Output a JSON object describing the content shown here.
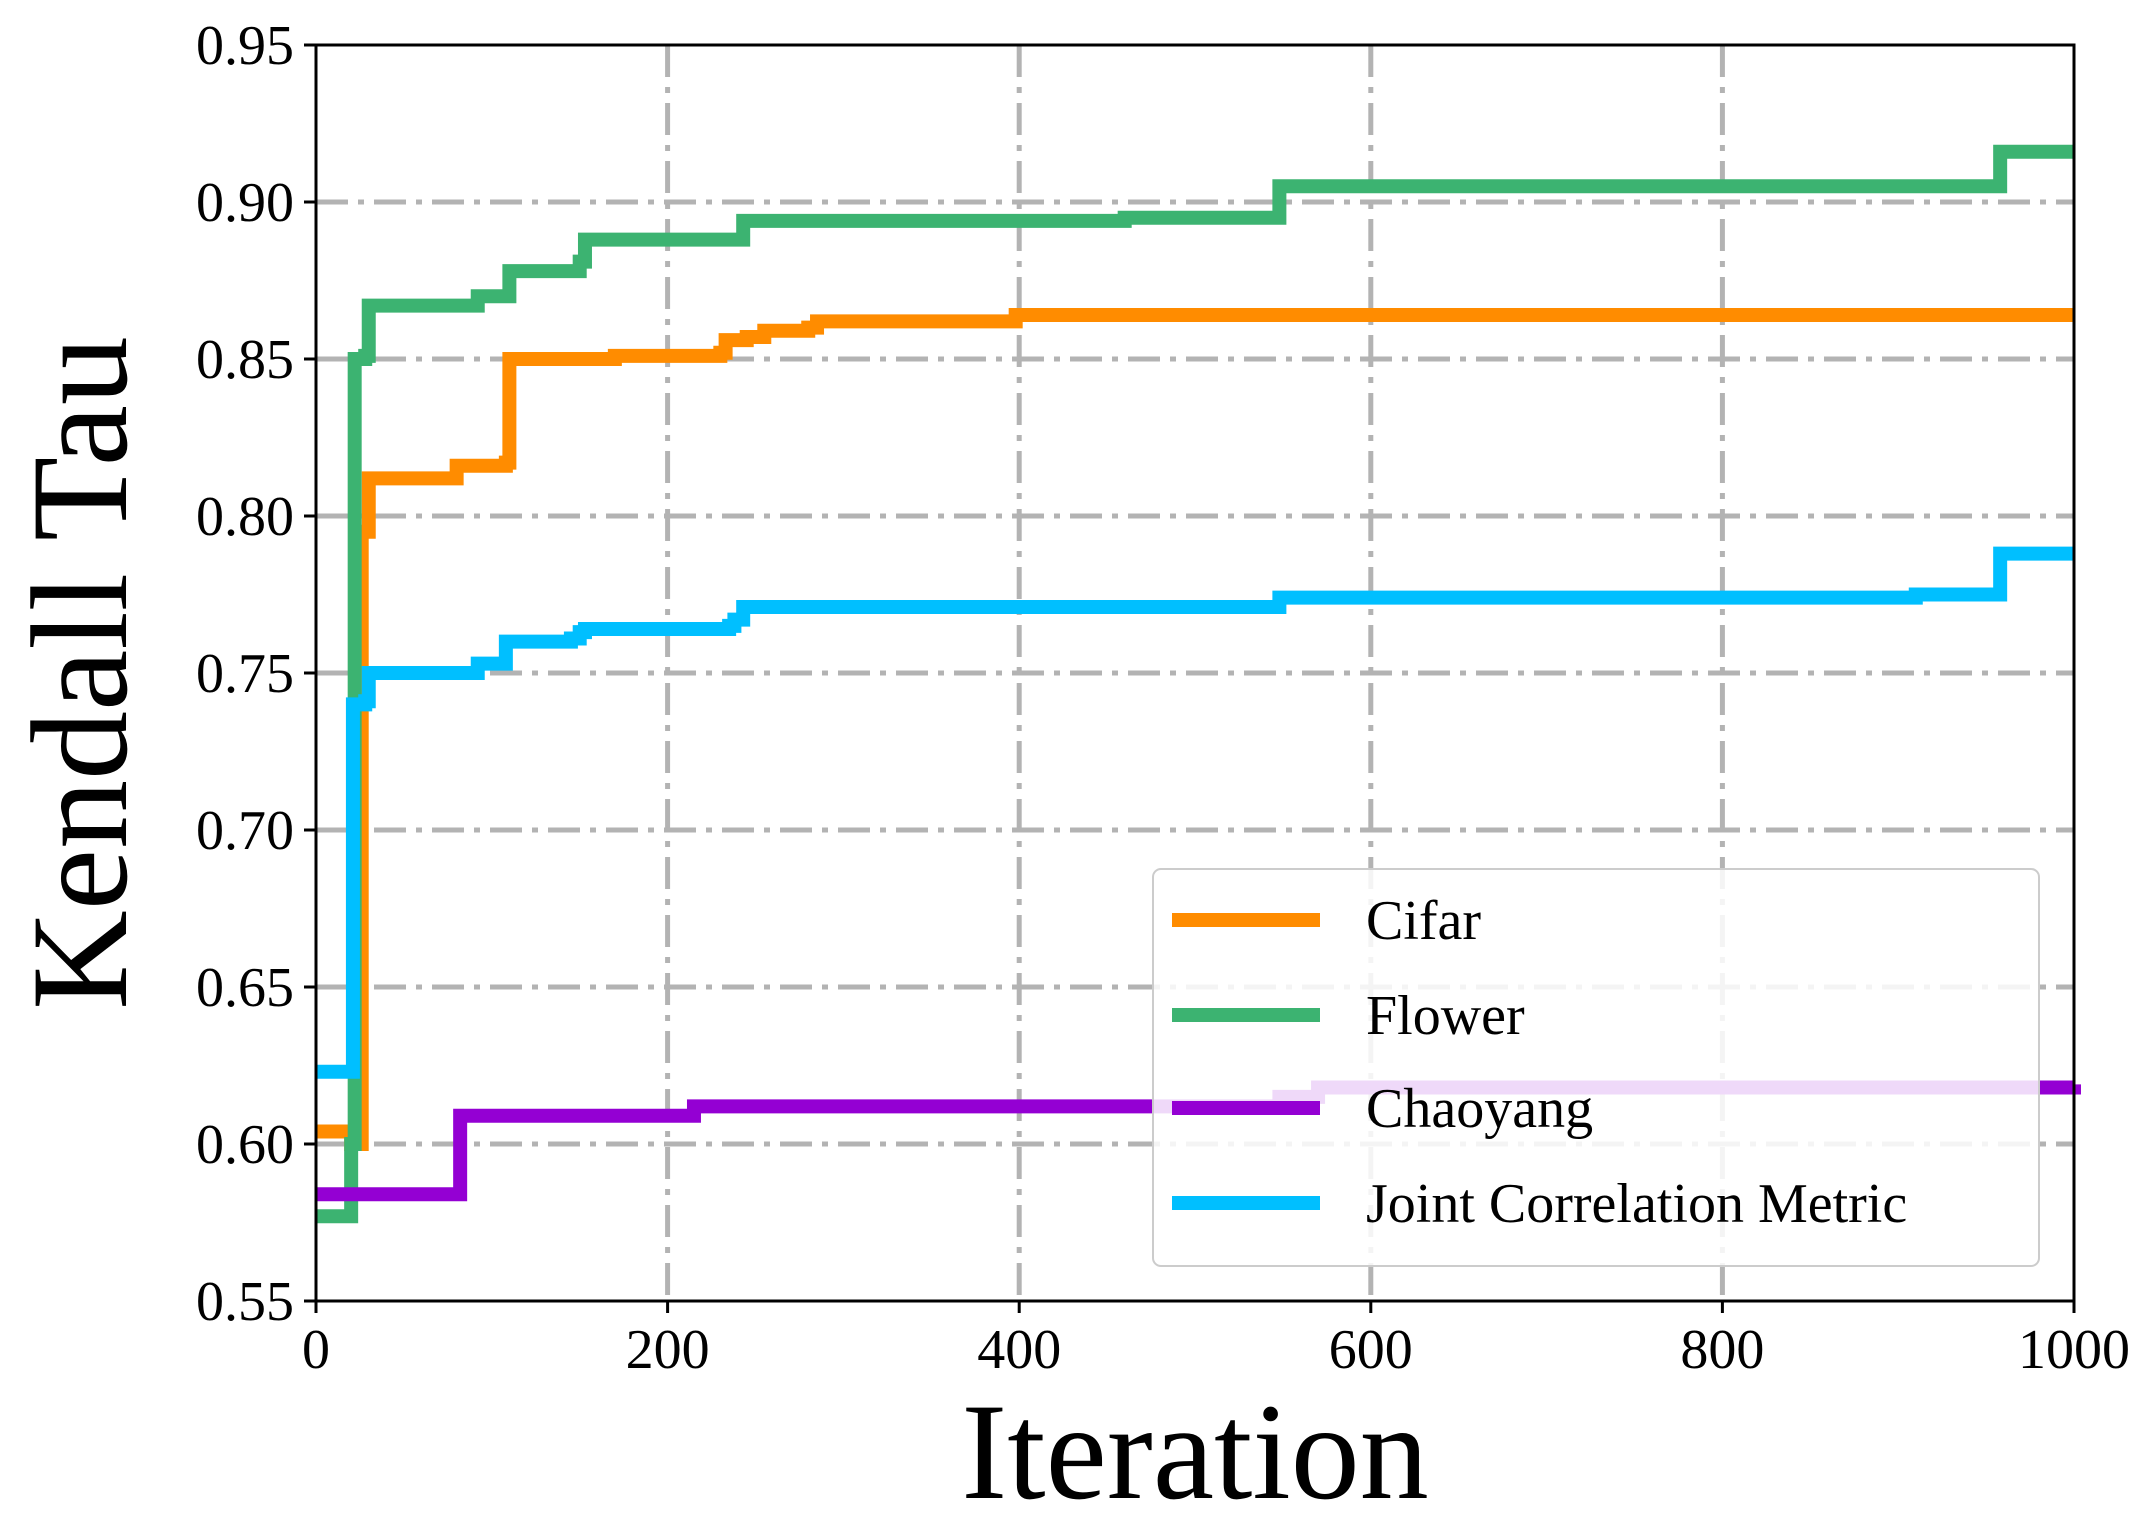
{
  "chart_data": {
    "type": "line",
    "title": "",
    "xlabel": "Iteration",
    "ylabel": "Kendall Tau",
    "xlim": [
      0,
      1000
    ],
    "ylim": [
      0.55,
      0.95
    ],
    "xticks": [
      0,
      200,
      400,
      600,
      800,
      1000
    ],
    "xtick_labels": [
      "0",
      "200",
      "400",
      "600",
      "800",
      "1000"
    ],
    "yticks": [
      0.55,
      0.6,
      0.65,
      0.7,
      0.75,
      0.8,
      0.85,
      0.9,
      0.95
    ],
    "ytick_labels": [
      "0.55",
      "0.60",
      "0.65",
      "0.70",
      "0.75",
      "0.80",
      "0.85",
      "0.90",
      "0.95"
    ],
    "grid": true,
    "legend_position": "lower-right",
    "series": [
      {
        "name": "Cifar",
        "color": "#ff8c00",
        "steps": [
          [
            0,
            0.604
          ],
          [
            20,
            0.6
          ],
          [
            26,
            0.795
          ],
          [
            30,
            0.812
          ],
          [
            78,
            0.812
          ],
          [
            80,
            0.816
          ],
          [
            100,
            0.816
          ],
          [
            108,
            0.817
          ],
          [
            110,
            0.85
          ],
          [
            170,
            0.851
          ],
          [
            230,
            0.852
          ],
          [
            233,
            0.856
          ],
          [
            245,
            0.857
          ],
          [
            255,
            0.859
          ],
          [
            280,
            0.86
          ],
          [
            285,
            0.862
          ],
          [
            395,
            0.862
          ],
          [
            398,
            0.864
          ],
          [
            1000,
            0.864
          ]
        ]
      },
      {
        "name": "Flower",
        "color": "#3cb371",
        "steps": [
          [
            0,
            0.577
          ],
          [
            20,
            0.6
          ],
          [
            22,
            0.85
          ],
          [
            28,
            0.851
          ],
          [
            30,
            0.867
          ],
          [
            88,
            0.867
          ],
          [
            92,
            0.87
          ],
          [
            105,
            0.87
          ],
          [
            110,
            0.878
          ],
          [
            145,
            0.878
          ],
          [
            150,
            0.881
          ],
          [
            153,
            0.888
          ],
          [
            238,
            0.888
          ],
          [
            243,
            0.894
          ],
          [
            460,
            0.895
          ],
          [
            545,
            0.895
          ],
          [
            548,
            0.905
          ],
          [
            955,
            0.905
          ],
          [
            958,
            0.916
          ],
          [
            1000,
            0.916
          ]
        ]
      },
      {
        "name": "Chaoyang",
        "color": "#9400d3",
        "steps": [
          [
            0,
            0.584
          ],
          [
            80,
            0.584
          ],
          [
            82,
            0.609
          ],
          [
            210,
            0.609
          ],
          [
            215,
            0.612
          ],
          [
            545,
            0.612
          ],
          [
            548,
            0.615
          ],
          [
            565,
            0.615
          ],
          [
            570,
            0.618
          ],
          [
            1000,
            0.619
          ]
        ]
      },
      {
        "name": "Joint Correlation Metric",
        "color": "#00bfff",
        "steps": [
          [
            0,
            0.623
          ],
          [
            20,
            0.623
          ],
          [
            21,
            0.74
          ],
          [
            28,
            0.741
          ],
          [
            30,
            0.75
          ],
          [
            90,
            0.75
          ],
          [
            92,
            0.753
          ],
          [
            105,
            0.753
          ],
          [
            108,
            0.76
          ],
          [
            145,
            0.761
          ],
          [
            150,
            0.763
          ],
          [
            153,
            0.764
          ],
          [
            235,
            0.765
          ],
          [
            238,
            0.767
          ],
          [
            243,
            0.771
          ],
          [
            545,
            0.771
          ],
          [
            548,
            0.774
          ],
          [
            910,
            0.775
          ],
          [
            955,
            0.775
          ],
          [
            958,
            0.788
          ],
          [
            1000,
            0.788
          ]
        ]
      }
    ]
  }
}
